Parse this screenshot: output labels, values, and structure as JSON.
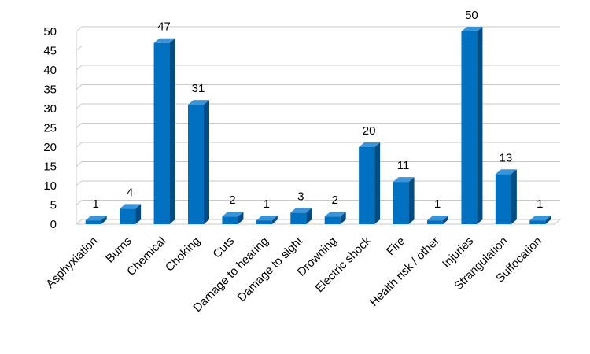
{
  "chart_data": {
    "type": "bar",
    "categories": [
      "Asphyxiation",
      "Burns",
      "Chemical",
      "Choking",
      "Cuts",
      "Damage to hearing",
      "Damage to sight",
      "Drowning",
      "Electric shock",
      "Fire",
      "Health risk / other",
      "Injuries",
      "Strangulation",
      "Suffocation"
    ],
    "values": [
      1,
      4,
      47,
      31,
      2,
      1,
      3,
      2,
      20,
      11,
      1,
      50,
      13,
      1
    ],
    "color": "#0070c0",
    "ylim": [
      0,
      50
    ],
    "yticks": [
      0,
      5,
      10,
      15,
      20,
      25,
      30,
      35,
      40,
      45,
      50
    ],
    "grid": true
  }
}
